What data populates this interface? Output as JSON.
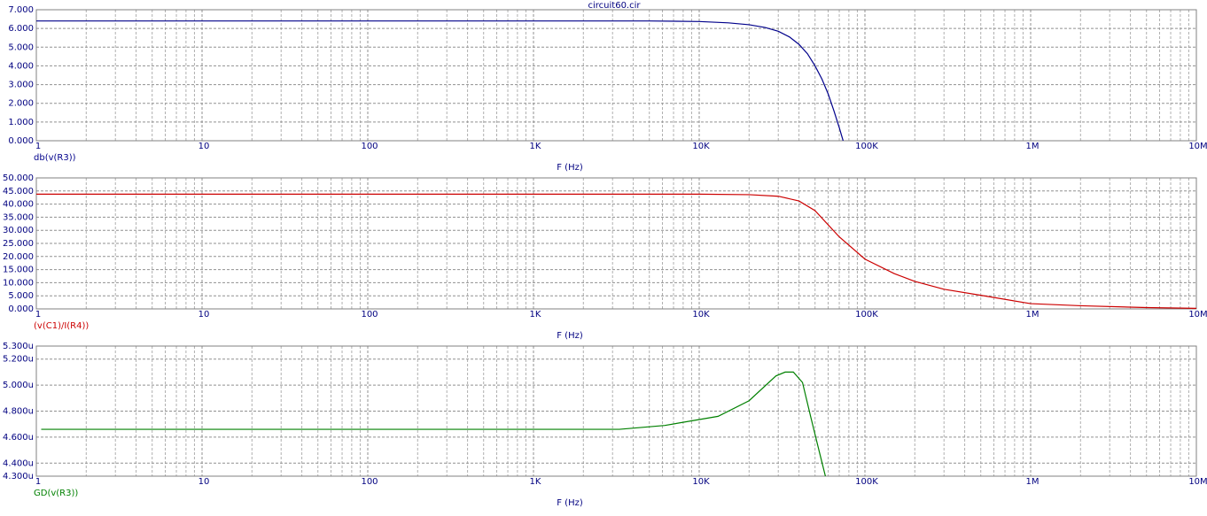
{
  "chart_data": [
    {
      "type": "line",
      "title": "circuit60.cir",
      "x_label": "F (Hz)",
      "log_x": true,
      "grid": true,
      "minor_grid": true,
      "x": [
        1,
        10,
        100,
        1000,
        5000,
        10000,
        15000,
        20000,
        25000,
        30000,
        35000,
        40000,
        45000,
        50000,
        55000,
        60000,
        65000,
        70000,
        75000,
        80000
      ],
      "series": [
        {
          "name": "db(v(R3))",
          "color": "#00008b",
          "values": [
            6.4,
            6.4,
            6.4,
            6.4,
            6.4,
            6.37,
            6.3,
            6.2,
            6.05,
            5.85,
            5.55,
            5.15,
            4.65,
            4.0,
            3.3,
            2.5,
            1.6,
            0.7,
            -0.2,
            -1.1
          ]
        }
      ],
      "xlim": [
        1,
        10000000
      ],
      "xticks": [
        1,
        10,
        100,
        {
          "value": 1000,
          "label": "1K"
        },
        {
          "value": 10000,
          "label": "10K"
        },
        {
          "value": 100000,
          "label": "100K"
        },
        {
          "value": 1000000,
          "label": "1M"
        },
        {
          "value": 10000000,
          "label": "10M"
        }
      ],
      "ylim": [
        0,
        7
      ],
      "yticks": [
        {
          "value": 0,
          "label": "0.000"
        },
        {
          "value": 1,
          "label": "1.000"
        },
        {
          "value": 2,
          "label": "2.000"
        },
        {
          "value": 3,
          "label": "3.000"
        },
        {
          "value": 4,
          "label": "4.000"
        },
        {
          "value": 5,
          "label": "5.000"
        },
        {
          "value": 6,
          "label": "6.000"
        },
        {
          "value": 7,
          "label": "7.000"
        }
      ]
    },
    {
      "type": "line",
      "x_label": "F (Hz)",
      "log_x": true,
      "grid": true,
      "minor_grid": true,
      "x": [
        1,
        10,
        100,
        1000,
        10000,
        20000,
        30000,
        40000,
        50000,
        70000,
        100000,
        150000,
        200000,
        300000,
        500000,
        1000000,
        2000000,
        5000000,
        10000000
      ],
      "series": [
        {
          "name": "(v(C1)/I(R4))",
          "color": "#cc0000",
          "values": [
            43.8,
            43.8,
            43.8,
            43.8,
            43.8,
            43.6,
            43.0,
            41.2,
            37.5,
            27.5,
            19.0,
            13.5,
            10.5,
            7.5,
            5.2,
            2.0,
            1.2,
            0.5,
            0.2
          ]
        }
      ],
      "xlim": [
        1,
        10000000
      ],
      "xticks": [
        1,
        10,
        100,
        {
          "value": 1000,
          "label": "1K"
        },
        {
          "value": 10000,
          "label": "10K"
        },
        {
          "value": 100000,
          "label": "100K"
        },
        {
          "value": 1000000,
          "label": "1M"
        },
        {
          "value": 10000000,
          "label": "10M"
        }
      ],
      "ylim": [
        0,
        50
      ],
      "yticks": [
        {
          "value": 0,
          "label": "0.000"
        },
        {
          "value": 5,
          "label": "5.000"
        },
        {
          "value": 10,
          "label": "10.000"
        },
        {
          "value": 15,
          "label": "15.000"
        },
        {
          "value": 20,
          "label": "20.000"
        },
        {
          "value": 25,
          "label": "25.000"
        },
        {
          "value": 30,
          "label": "30.000"
        },
        {
          "value": 35,
          "label": "35.000"
        },
        {
          "value": 40,
          "label": "40.000"
        },
        {
          "value": 45,
          "label": "45.000"
        },
        {
          "value": 50,
          "label": "50.000"
        }
      ]
    },
    {
      "type": "line",
      "x_label": "F (Hz)",
      "log_x": true,
      "grid": true,
      "minor_grid": true,
      "x": [
        1.07,
        10,
        100,
        1000,
        3300,
        6200,
        13000,
        20000,
        29000,
        33000,
        37000,
        42000,
        47000,
        53000,
        58000
      ],
      "series": [
        {
          "name": "GD(v(R3))",
          "color": "#008000",
          "values": [
            4.66e-06,
            4.66e-06,
            4.66e-06,
            4.66e-06,
            4.66e-06,
            4.69e-06,
            4.76e-06,
            4.88e-06,
            5.07e-06,
            5.1e-06,
            5.1e-06,
            5.02e-06,
            4.76e-06,
            4.49e-06,
            4.29e-06
          ]
        }
      ],
      "xlim": [
        1,
        10000000
      ],
      "xticks": [
        1,
        10,
        100,
        {
          "value": 1000,
          "label": "1K"
        },
        {
          "value": 10000,
          "label": "10K"
        },
        {
          "value": 100000,
          "label": "100K"
        },
        {
          "value": 1000000,
          "label": "1M"
        },
        {
          "value": 10000000,
          "label": "10M"
        }
      ],
      "ylim": [
        4.3e-06,
        5.3e-06
      ],
      "yticks": [
        {
          "value": 4.3e-06,
          "label": "4.300u"
        },
        {
          "value": 4.4e-06,
          "label": "4.400u"
        },
        {
          "value": 4.6e-06,
          "label": "4.600u"
        },
        {
          "value": 4.8e-06,
          "label": "4.800u"
        },
        {
          "value": 5e-06,
          "label": "5.000u"
        },
        {
          "value": 5.2e-06,
          "label": "5.200u"
        },
        {
          "value": 5.3e-06,
          "label": "5.300u"
        }
      ]
    }
  ]
}
